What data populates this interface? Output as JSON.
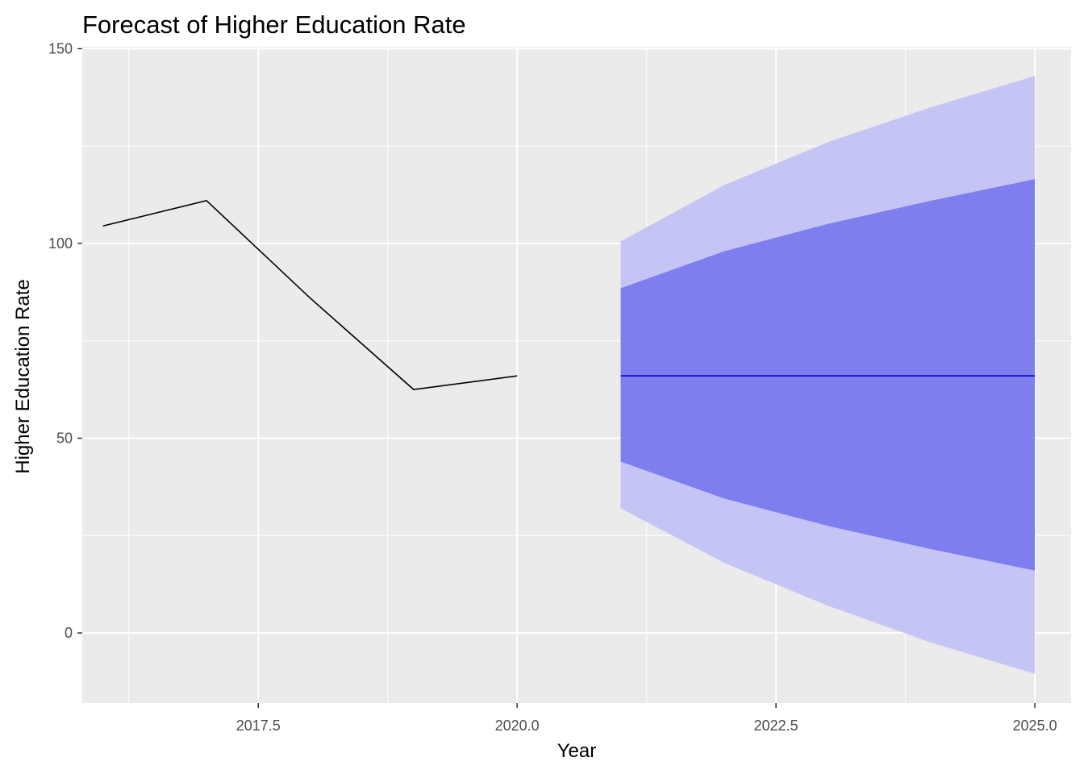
{
  "chart_data": {
    "type": "line",
    "title": "Forecast of Higher Education Rate",
    "xlabel": "Year",
    "ylabel": "Higher Education Rate",
    "xlim": [
      2015.8,
      2025.35
    ],
    "ylim": [
      -18,
      150.5
    ],
    "x_ticks": [
      2017.5,
      2020.0,
      2022.5,
      2025.0
    ],
    "x_tick_labels": [
      "2017.5",
      "2020.0",
      "2022.5",
      "2025.0"
    ],
    "y_ticks": [
      0,
      50,
      100,
      150
    ],
    "y_tick_labels": [
      "0",
      "50",
      "100",
      "150"
    ],
    "grid": true,
    "legend": "none",
    "colors": {
      "panel_background": "#EBEBEB",
      "grid": "#FFFFFF",
      "history_line": "#000000",
      "forecast_line": "#0000CC",
      "band_80": "#7E7EEE",
      "band_95": "#C4C4F5",
      "tick_mark": "#333333"
    },
    "history": {
      "x": [
        2016,
        2017,
        2018,
        2019,
        2020
      ],
      "y": [
        104.5,
        111,
        86,
        62.5,
        66
      ]
    },
    "forecast": {
      "x": [
        2021,
        2022,
        2023,
        2024,
        2025
      ],
      "mean": [
        66,
        66,
        66,
        66,
        66
      ],
      "lo80": [
        44,
        34.5,
        27.5,
        21.5,
        16
      ],
      "hi80": [
        88.5,
        98,
        105,
        111,
        116.5
      ],
      "lo95": [
        32,
        18,
        7,
        -2.5,
        -10.5
      ],
      "hi95": [
        100.5,
        115,
        126,
        135,
        143
      ]
    }
  }
}
